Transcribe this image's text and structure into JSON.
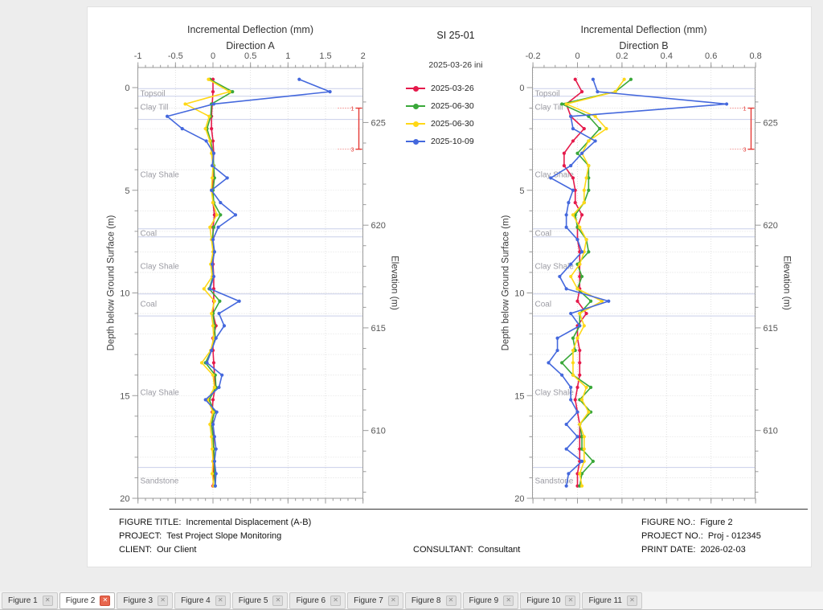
{
  "window": {
    "background": "#ededed",
    "page_background": "#ffffff"
  },
  "legend": {
    "title": "SI 25-01",
    "initial_label": "2025-03-26 ini",
    "items": [
      {
        "label": "2025-03-26",
        "color": "#e51a4b"
      },
      {
        "label": "2025-06-30",
        "color": "#3aa83a"
      },
      {
        "label": "2025-06-30",
        "color": "#ffd817"
      },
      {
        "label": "2025-10-09",
        "color": "#4468dd"
      }
    ]
  },
  "footer": {
    "left": [
      {
        "label": "FIGURE TITLE:",
        "value": "Incremental Displacement (A-B)"
      },
      {
        "label": "PROJECT:",
        "value": "Test Project Slope Monitoring"
      },
      {
        "label": "CLIENT:",
        "value": "Our Client"
      }
    ],
    "center": {
      "label": "CONSULTANT:",
      "value": "Consultant"
    },
    "right": [
      {
        "label": "FIGURE NO.:",
        "value": "Figure 2"
      },
      {
        "label": "PROJECT NO.:",
        "value": "Proj - 012345"
      },
      {
        "label": "PRINT DATE:",
        "value": "2026-02-03"
      }
    ]
  },
  "tabs": {
    "active_index": 1,
    "items": [
      "Figure 1",
      "Figure 2",
      "Figure 3",
      "Figure 4",
      "Figure 5",
      "Figure 6",
      "Figure 7",
      "Figure 8",
      "Figure 9",
      "Figure 10",
      "Figure 11"
    ]
  },
  "chart_colors": {
    "grid": "#d9d9d9",
    "border": "#9a9a9a",
    "tick_text": "#555555",
    "strata_line": "#c9cfe9",
    "strata_text": "#9b9ba3",
    "zone_marker": "#e53935"
  },
  "chart_data": [
    {
      "type": "line",
      "title": "Incremental Deflection (mm)",
      "subtitle": "Direction A",
      "xlim": [
        -1,
        2
      ],
      "x_major_ticks": [
        -1,
        -0.5,
        0,
        0.5,
        1,
        1.5,
        2
      ],
      "x_major_labels": [
        "-1",
        "-0.5",
        "0",
        "0.5",
        "1",
        "1.5",
        "2"
      ],
      "x_minor_step": 0.1,
      "depth_label": "Depth below Ground Surface (m)",
      "depth_lim": [
        -0.98,
        20
      ],
      "depth_major_ticks": [
        0,
        5,
        10,
        15,
        20
      ],
      "depth_minor_step": 1,
      "elevation_label": "Elevation (m)",
      "elevation_major_ticks": [
        625,
        620,
        615,
        610
      ],
      "surface_elevation": 626.7,
      "zone_marker": {
        "top_depth": 1,
        "bottom_depth": 3,
        "top_label": "1",
        "bottom_label": "3"
      },
      "strata_boundaries": [
        0.05,
        0.42,
        1.55,
        6.88,
        7.27,
        10.05,
        11.12,
        18.5
      ],
      "strata_labels": [
        {
          "name": "Topsoil",
          "depth": 0.3
        },
        {
          "name": "Clay Till",
          "depth": 0.95
        },
        {
          "name": "Clay Shale",
          "depth": 4.25
        },
        {
          "name": "Coal",
          "depth": 7.1
        },
        {
          "name": "Clay Shale",
          "depth": 8.7
        },
        {
          "name": "Coal",
          "depth": 10.55
        },
        {
          "name": "Clay Shale",
          "depth": 14.85
        },
        {
          "name": "Sandstone",
          "depth": 19.15
        }
      ],
      "depths": [
        -0.4,
        0.2,
        0.8,
        1.4,
        2.0,
        2.6,
        3.2,
        3.8,
        4.4,
        5.0,
        5.6,
        6.2,
        6.8,
        7.4,
        8.0,
        8.6,
        9.2,
        9.8,
        10.4,
        11.0,
        11.6,
        12.2,
        12.8,
        13.4,
        14.0,
        14.6,
        15.2,
        15.8,
        16.4,
        17.0,
        17.6,
        18.2,
        18.8,
        19.4
      ],
      "series": [
        {
          "name": "2025-03-26",
          "color": "#e51a4b",
          "values": [
            0,
            0,
            -0.01,
            -0.02,
            -0.02,
            0,
            0.01,
            0,
            0,
            -0.01,
            0,
            0.02,
            0,
            0,
            0.01,
            0,
            0.01,
            0.01,
            0.01,
            0,
            0.04,
            0,
            0,
            0.01,
            0.02,
            0.03,
            0,
            -0.01,
            0,
            0.01,
            0.01,
            0,
            0.01,
            0
          ]
        },
        {
          "name": "2025-06-30",
          "color": "#3aa83a",
          "values": [
            -0.04,
            0.26,
            -0.02,
            -0.03,
            -0.08,
            -0.03,
            0,
            0.01,
            0.02,
            0,
            0.01,
            0.1,
            0.01,
            -0.01,
            0.02,
            -0.02,
            0,
            -0.05,
            0.09,
            0,
            0.02,
            0.03,
            -0.02,
            -0.1,
            0.03,
            0.04,
            -0.05,
            0.02,
            -0.02,
            0,
            0.01,
            0.02,
            0.02,
            0.03
          ]
        },
        {
          "name": "2025-06-30",
          "color": "#ffd817",
          "values": [
            -0.06,
            0.22,
            -0.37,
            -0.05,
            -0.1,
            -0.04,
            -0.02,
            0,
            -0.01,
            -0.02,
            0,
            0.05,
            -0.04,
            -0.02,
            0,
            -0.03,
            -0.01,
            -0.12,
            0.02,
            -0.02,
            0,
            0.01,
            -0.03,
            -0.15,
            0,
            0.02,
            -0.07,
            0,
            -0.04,
            -0.02,
            -0.01,
            0,
            -0.01,
            0.01
          ]
        },
        {
          "name": "2025-10-09",
          "color": "#4468dd",
          "values": [
            1.15,
            1.56,
            0.01,
            -0.61,
            -0.41,
            -0.09,
            0.01,
            -0.01,
            0.19,
            -0.02,
            0.1,
            0.3,
            0.07,
            0,
            0.02,
            -0.01,
            0.01,
            -0.04,
            0.35,
            0.08,
            0.15,
            0.04,
            -0.02,
            -0.08,
            0.12,
            0.08,
            -0.1,
            0.05,
            0,
            0.02,
            0.04,
            0.02,
            0.04,
            0.03
          ]
        }
      ]
    },
    {
      "type": "line",
      "title": "Incremental Deflection (mm)",
      "subtitle": "Direction B",
      "xlim": [
        -0.2,
        0.8
      ],
      "x_major_ticks": [
        -0.2,
        0,
        0.2,
        0.4,
        0.6,
        0.8
      ],
      "x_major_labels": [
        "-0.2",
        "0",
        "0.2",
        "0.4",
        "0.6",
        "0.8"
      ],
      "x_minor_step": 0.05,
      "depth_label": "Depth below Ground Surface (m)",
      "depth_lim": [
        -0.98,
        20
      ],
      "depth_major_ticks": [
        0,
        5,
        10,
        15,
        20
      ],
      "depth_minor_step": 1,
      "elevation_label": "Elevation (m)",
      "elevation_major_ticks": [
        625,
        620,
        615,
        610
      ],
      "surface_elevation": 626.7,
      "zone_marker": {
        "top_depth": 1,
        "bottom_depth": 3,
        "top_label": "1",
        "bottom_label": "3"
      },
      "strata_boundaries": [
        0.05,
        0.42,
        1.55,
        6.88,
        7.27,
        10.05,
        11.12,
        18.5
      ],
      "strata_labels": [
        {
          "name": "Topsoil",
          "depth": 0.3
        },
        {
          "name": "Clay Till",
          "depth": 0.95
        },
        {
          "name": "Clay Shale",
          "depth": 4.25
        },
        {
          "name": "Coal",
          "depth": 7.1
        },
        {
          "name": "Clay Shale",
          "depth": 8.7
        },
        {
          "name": "Coal",
          "depth": 10.55
        },
        {
          "name": "Clay Shale",
          "depth": 14.85
        },
        {
          "name": "Sandstone",
          "depth": 19.15
        }
      ],
      "depths": [
        -0.4,
        0.2,
        0.8,
        1.4,
        2.0,
        2.6,
        3.2,
        3.8,
        4.4,
        5.0,
        5.6,
        6.2,
        6.8,
        7.4,
        8.0,
        8.6,
        9.2,
        9.8,
        10.4,
        11.0,
        11.6,
        12.2,
        12.8,
        13.4,
        14.0,
        14.6,
        15.2,
        15.8,
        16.4,
        17.0,
        17.6,
        18.2,
        18.8,
        19.4
      ],
      "series": [
        {
          "name": "2025-03-26",
          "color": "#e51a4b",
          "values": [
            -0.01,
            0.02,
            -0.05,
            -0.03,
            0.03,
            -0.02,
            -0.06,
            -0.06,
            -0.02,
            -0.01,
            -0.01,
            0.02,
            0,
            0,
            0.01,
            0.01,
            0.01,
            0.01,
            0,
            0.04,
            0,
            0,
            0.01,
            0.01,
            0.01,
            0,
            -0.01,
            0,
            0.01,
            0.01,
            0.01,
            0.01,
            0,
            0
          ]
        },
        {
          "name": "2025-06-30",
          "color": "#3aa83a",
          "values": [
            0.24,
            0.17,
            -0.07,
            0.05,
            0.1,
            0.05,
            0,
            0.05,
            0.05,
            0.05,
            0.03,
            -0.01,
            0,
            0.04,
            0.05,
            0,
            0.02,
            0,
            0.06,
            0.01,
            0.01,
            -0.02,
            -0.01,
            -0.07,
            -0.02,
            0.06,
            0.01,
            0.06,
            0.01,
            0.02,
            0.02,
            0.07,
            0.02,
            0.01
          ]
        },
        {
          "name": "2025-06-30",
          "color": "#ffd817",
          "values": [
            0.21,
            0.17,
            -0.05,
            0.08,
            0.13,
            0.05,
            0.02,
            0.05,
            0.04,
            0.03,
            0.03,
            -0.02,
            0.01,
            0.04,
            0.03,
            0.01,
            -0.03,
            0,
            0.11,
            0.01,
            0.03,
            0,
            -0.02,
            -0.02,
            -0.02,
            0.04,
            0.02,
            0.05,
            0.01,
            0.03,
            0.03,
            0.03,
            0.01,
            0.02
          ]
        },
        {
          "name": "2025-10-09",
          "color": "#4468dd",
          "values": [
            0.07,
            0.09,
            0.67,
            -0.03,
            -0.02,
            0.08,
            0.02,
            -0.03,
            -0.12,
            -0.02,
            -0.04,
            -0.05,
            -0.05,
            0,
            0.02,
            -0.03,
            -0.08,
            -0.05,
            0.14,
            -0.03,
            0.01,
            -0.09,
            -0.09,
            -0.13,
            -0.07,
            -0.03,
            -0.03,
            0,
            -0.05,
            0,
            -0.05,
            0.02,
            -0.04,
            -0.05
          ]
        }
      ]
    }
  ]
}
